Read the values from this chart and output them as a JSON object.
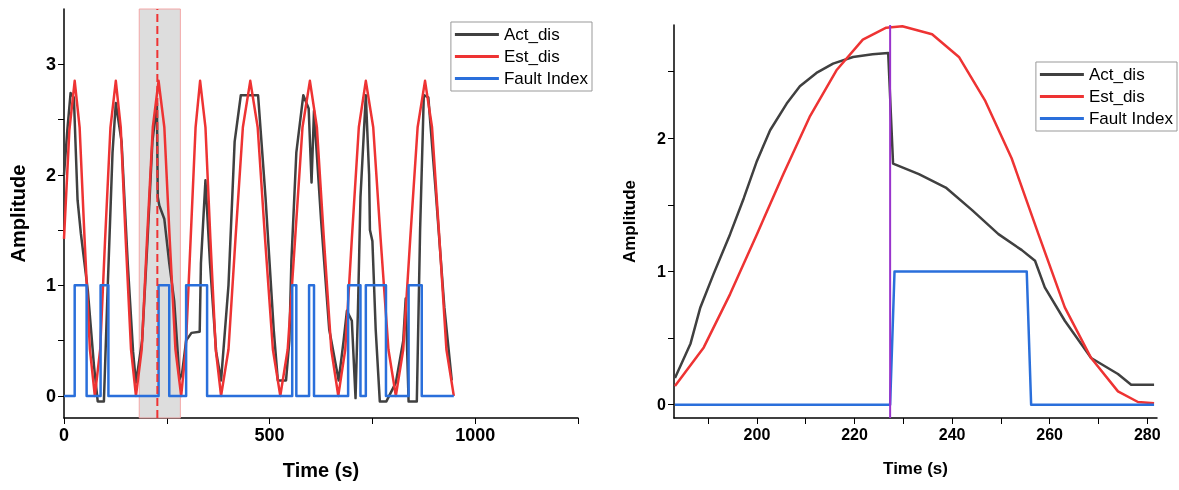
{
  "chart_data": [
    {
      "type": "line",
      "xlabel": "Time (s)",
      "ylabel": "Amplitude",
      "xlim": [
        0,
        1250
      ],
      "xticks": [
        0,
        {
          "value": 250,
          "label": null
        },
        500,
        {
          "value": 750,
          "label": null
        },
        1000,
        {
          "value": 1250,
          "label": null
        }
      ],
      "ylim": [
        -0.2,
        3.5
      ],
      "yticks": [
        0,
        {
          "value": 0.5,
          "label": null
        },
        1,
        {
          "value": 1.5,
          "label": null
        },
        2,
        {
          "value": 2.5,
          "label": null
        },
        3
      ],
      "grid": false,
      "legend": "top right",
      "bands": [
        {
          "axis": "x",
          "from": 183,
          "to": 283,
          "color": "#d9d9d9"
        }
      ],
      "ref_lines": [
        {
          "axis": "x",
          "value": 227,
          "color": "#ee3333",
          "line_style": "dashed"
        }
      ],
      "series": [
        {
          "name": "Act_dis",
          "color": "#404040",
          "x": [
            0,
            8,
            16,
            24,
            33,
            41,
            58,
            73,
            82,
            97,
            106,
            118,
            126,
            140,
            155,
            168,
            175,
            190,
            203,
            215,
            226,
            228,
            232,
            244,
            256,
            268,
            281,
            287,
            297,
            310,
            330,
            333,
            344,
            355,
            370,
            382,
            400,
            415,
            430,
            472,
            490,
            510,
            520,
            540,
            548,
            553,
            565,
            582,
            595,
            602,
            608,
            625,
            645,
            668,
            680,
            688,
            700,
            709,
            715,
            721,
            734,
            742,
            744,
            750,
            758,
            768,
            784,
            807,
            825,
            831,
            838,
            858,
            866,
            875,
            886,
            905,
            925,
            943
          ],
          "values": [
            2.0,
            2.4,
            2.74,
            2.7,
            1.77,
            1.47,
            0.95,
            0.27,
            -0.05,
            -0.05,
            0.95,
            2.2,
            2.65,
            2.3,
            1.2,
            0.4,
            0.12,
            0.5,
            1.4,
            2.3,
            2.65,
            1.8,
            1.72,
            1.6,
            1.2,
            0.86,
            0.15,
            0.2,
            0.5,
            0.57,
            0.58,
            1.2,
            1.95,
            1.2,
            0.4,
            0.14,
            1.0,
            2.3,
            2.72,
            2.72,
            1.8,
            0.6,
            0.14,
            0.14,
            0.5,
            1.22,
            2.2,
            2.72,
            2.6,
            1.93,
            2.58,
            1.6,
            0.6,
            0.14,
            0.5,
            0.77,
            0.68,
            -0.02,
            0.8,
            1.8,
            2.72,
            2.0,
            1.5,
            1.4,
            0.6,
            -0.05,
            -0.05,
            0.12,
            0.5,
            0.88,
            -0.05,
            -0.05,
            1.5,
            2.72,
            2.7,
            1.8,
            0.8,
            0.14
          ]
        },
        {
          "name": "Est_dis",
          "color": "#ee3333",
          "x": [
            0,
            13,
            26,
            38,
            50,
            63,
            75,
            88,
            100,
            113,
            126,
            138,
            150,
            163,
            175,
            189,
            202,
            216,
            230,
            244,
            257,
            271,
            285,
            296,
            308,
            320,
            331,
            344,
            356,
            369,
            382,
            400,
            417,
            435,
            453,
            471,
            489,
            508,
            526,
            544,
            562,
            580,
            598,
            615,
            632,
            650,
            667,
            684,
            700,
            717,
            734,
            752,
            770,
            789,
            807,
            825,
            842,
            860,
            878,
            895,
            913,
            930,
            948
          ],
          "values": [
            1.42,
            2.4,
            2.85,
            2.43,
            1.42,
            0.42,
            0,
            0.42,
            1.42,
            2.43,
            2.85,
            2.43,
            1.42,
            0.42,
            0,
            0.42,
            1.42,
            2.43,
            2.85,
            2.43,
            1.42,
            0.42,
            0,
            0.42,
            1.42,
            2.43,
            2.85,
            2.43,
            1.42,
            0.42,
            0,
            0.42,
            1.42,
            2.43,
            2.85,
            2.43,
            1.42,
            0.42,
            0,
            0.42,
            1.42,
            2.43,
            2.85,
            2.43,
            1.42,
            0.42,
            0,
            0.42,
            1.42,
            2.43,
            2.85,
            2.43,
            1.42,
            0.42,
            0,
            0.42,
            1.42,
            2.43,
            2.85,
            2.43,
            1.42,
            0.42,
            0
          ]
        },
        {
          "name": "Fault Index",
          "type": "step",
          "color": "#2a6fdb",
          "x": [
            0,
            26,
            55,
            89,
            108,
            230,
            256,
            297,
            348,
            555,
            565,
            596,
            608,
            691,
            721,
            734,
            783,
            838,
            870,
            948
          ],
          "values": [
            0,
            1,
            0,
            1,
            0,
            1,
            0,
            1,
            0,
            1,
            0,
            1,
            0,
            1,
            0,
            1,
            0,
            1,
            0,
            0
          ]
        }
      ]
    },
    {
      "type": "line",
      "xlabel": "Time (s)",
      "ylabel": "Amplitude",
      "xlim": [
        183,
        282
      ],
      "xticks": [
        {
          "value": 190,
          "label": null
        },
        200,
        {
          "value": 210,
          "label": null
        },
        220,
        {
          "value": 230,
          "label": null
        },
        240,
        {
          "value": 250,
          "label": null
        },
        260,
        {
          "value": 270,
          "label": null
        },
        280
      ],
      "ylim": [
        -0.1,
        2.85
      ],
      "yticks": [
        0,
        {
          "value": 0.5,
          "label": null
        },
        1,
        {
          "value": 1.5,
          "label": null
        },
        2,
        {
          "value": 2.5,
          "label": null
        }
      ],
      "grid": false,
      "legend": "top right",
      "ref_lines": [
        {
          "axis": "x",
          "value": 227.3,
          "color": "#9933cc",
          "line_style": "solid"
        }
      ],
      "series": [
        {
          "name": "Act_dis",
          "color": "#404040",
          "x": [
            183.2,
            186.4,
            188.4,
            191.1,
            194.5,
            197.3,
            200,
            202.7,
            206.1,
            208.8,
            212.2,
            215.6,
            219.7,
            223.7,
            226.9,
            227.9,
            233.2,
            238.7,
            244.1,
            249.5,
            254.3,
            257,
            259,
            263.1,
            268.5,
            274,
            276.7,
            281.4
          ],
          "values": [
            0.2,
            0.46,
            0.73,
            0.98,
            1.28,
            1.55,
            1.83,
            2.06,
            2.26,
            2.39,
            2.49,
            2.56,
            2.61,
            2.63,
            2.64,
            1.81,
            1.73,
            1.63,
            1.46,
            1.28,
            1.16,
            1.08,
            0.88,
            0.63,
            0.35,
            0.23,
            0.15,
            0.15
          ]
        },
        {
          "name": "Est_dis",
          "color": "#ee3333",
          "x": [
            183.2,
            189.1,
            194.5,
            200,
            205.4,
            210.8,
            216.3,
            221.7,
            226.5,
            229.8,
            235.9,
            241.4,
            246.8,
            252.2,
            257.7,
            263.1,
            268.5,
            274,
            278.1,
            281.4
          ],
          "values": [
            0.14,
            0.43,
            0.83,
            1.28,
            1.73,
            2.16,
            2.51,
            2.74,
            2.83,
            2.84,
            2.78,
            2.61,
            2.28,
            1.85,
            1.28,
            0.73,
            0.35,
            0.1,
            0.02,
            0.01
          ]
        },
        {
          "name": "Fault Index",
          "color": "#2a6fdb",
          "x": [
            183.2,
            227.3,
            228.2,
            255.3,
            256.2,
            281.4
          ],
          "values": [
            0,
            0,
            1,
            1,
            0,
            0
          ]
        }
      ]
    }
  ]
}
